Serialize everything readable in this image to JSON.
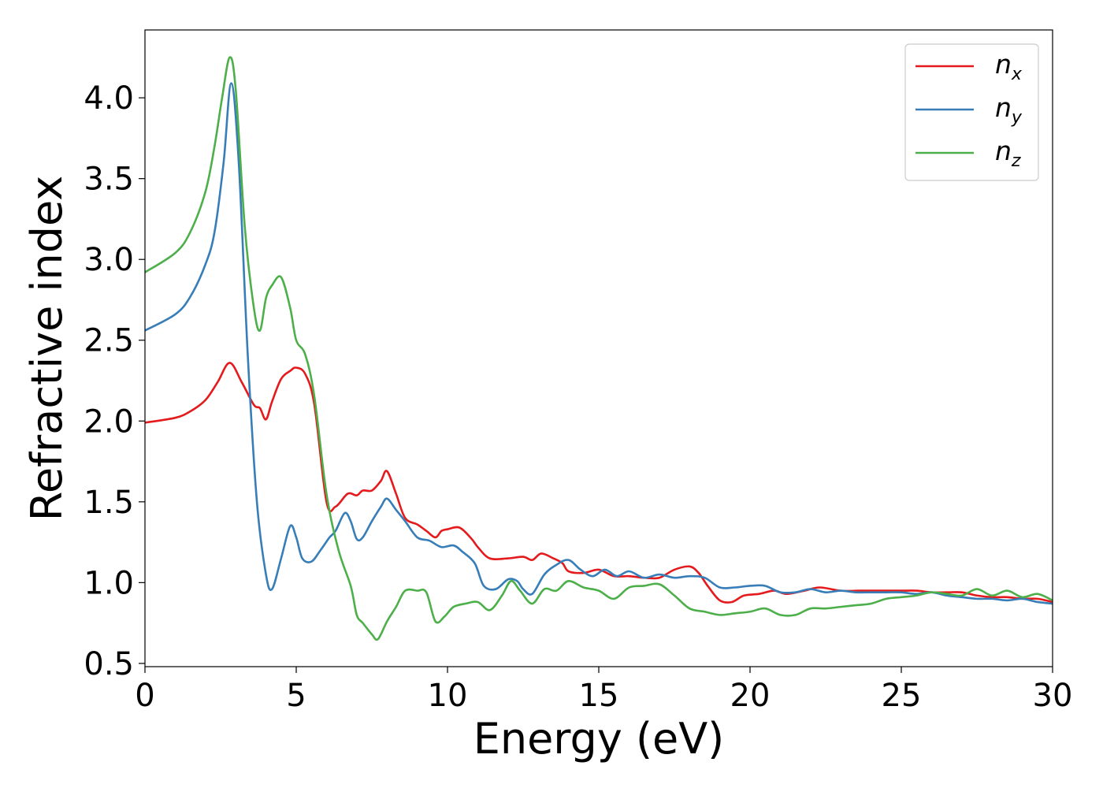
{
  "chart_data": {
    "type": "line",
    "title": "",
    "xlabel": "Energy (eV)",
    "ylabel": "Refractive index",
    "xlim": [
      0,
      30
    ],
    "ylim": [
      0.48,
      4.42
    ],
    "xticks": [
      0,
      5,
      10,
      15,
      20,
      25,
      30
    ],
    "xtick_labels": [
      "0",
      "5",
      "10",
      "15",
      "20",
      "25",
      "30"
    ],
    "yticks": [
      0.5,
      1.0,
      1.5,
      2.0,
      2.5,
      3.0,
      3.5,
      4.0
    ],
    "ytick_labels": [
      "0.5",
      "1.0",
      "1.5",
      "2.0",
      "2.5",
      "3.0",
      "3.5",
      "4.0"
    ],
    "grid": false,
    "legend_position": "top-right",
    "series": [
      {
        "name": "n_x",
        "label_base": "n",
        "label_sub": "x",
        "color": "#e41a1c",
        "x": [
          0,
          1,
          1.5,
          2,
          2.4,
          2.8,
          3.2,
          3.6,
          3.8,
          4.0,
          4.2,
          4.5,
          4.8,
          5.0,
          5.3,
          5.6,
          6.0,
          6.3,
          6.7,
          7.0,
          7.2,
          7.5,
          7.8,
          8.0,
          8.3,
          8.6,
          9.0,
          9.3,
          9.6,
          9.8,
          10.0,
          10.4,
          10.8,
          11.0,
          11.4,
          12.0,
          12.5,
          12.8,
          13.1,
          13.5,
          13.8,
          14.0,
          14.5,
          15.0,
          15.5,
          16.0,
          16.5,
          17.0,
          17.5,
          18.0,
          18.3,
          18.6,
          19.0,
          19.4,
          19.8,
          20.3,
          20.8,
          21.2,
          21.8,
          22.3,
          23.0,
          23.6,
          24.0,
          24.5,
          25.0,
          25.5,
          26.0,
          26.5,
          27.0,
          27.5,
          28.0,
          28.5,
          29.0,
          29.5,
          30.0
        ],
        "y": [
          1.99,
          2.02,
          2.06,
          2.13,
          2.24,
          2.36,
          2.24,
          2.1,
          2.08,
          2.01,
          2.12,
          2.26,
          2.31,
          2.33,
          2.29,
          2.1,
          1.5,
          1.47,
          1.55,
          1.54,
          1.57,
          1.57,
          1.63,
          1.69,
          1.55,
          1.4,
          1.36,
          1.32,
          1.28,
          1.32,
          1.33,
          1.34,
          1.27,
          1.22,
          1.15,
          1.15,
          1.16,
          1.14,
          1.18,
          1.15,
          1.12,
          1.07,
          1.06,
          1.08,
          1.04,
          1.04,
          1.03,
          1.03,
          1.08,
          1.1,
          1.06,
          0.98,
          0.89,
          0.88,
          0.92,
          0.93,
          0.95,
          0.93,
          0.95,
          0.97,
          0.95,
          0.95,
          0.95,
          0.95,
          0.95,
          0.95,
          0.94,
          0.94,
          0.94,
          0.92,
          0.91,
          0.91,
          0.9,
          0.9,
          0.88
        ]
      },
      {
        "name": "n_y",
        "label_base": "n",
        "label_sub": "y",
        "color": "#377eb8",
        "x": [
          0,
          1,
          1.5,
          2,
          2.3,
          2.6,
          2.85,
          3.1,
          3.4,
          3.7,
          4.0,
          4.2,
          4.5,
          4.8,
          5.0,
          5.2,
          5.5,
          5.8,
          6.1,
          6.3,
          6.6,
          6.8,
          7.0,
          7.2,
          7.5,
          7.8,
          8.0,
          8.3,
          8.6,
          9.0,
          9.4,
          9.8,
          10.2,
          10.5,
          10.9,
          11.2,
          11.6,
          12.0,
          12.3,
          12.5,
          12.8,
          13.2,
          13.6,
          14.0,
          14.4,
          14.8,
          15.2,
          15.6,
          16.0,
          16.5,
          17.0,
          17.5,
          18.0,
          18.5,
          19.0,
          19.5,
          20.0,
          20.5,
          21.0,
          21.5,
          22.0,
          22.5,
          23.0,
          23.5,
          24.0,
          24.5,
          25.0,
          25.5,
          26.0,
          26.5,
          27.0,
          27.5,
          28.0,
          28.5,
          29.0,
          29.5,
          30.0
        ],
        "y": [
          2.56,
          2.66,
          2.77,
          2.97,
          3.17,
          3.6,
          4.09,
          3.6,
          2.4,
          1.5,
          1.05,
          0.96,
          1.15,
          1.35,
          1.28,
          1.15,
          1.13,
          1.2,
          1.28,
          1.32,
          1.43,
          1.38,
          1.27,
          1.28,
          1.38,
          1.47,
          1.52,
          1.45,
          1.38,
          1.28,
          1.26,
          1.22,
          1.23,
          1.19,
          1.12,
          0.98,
          0.96,
          1.02,
          1.01,
          0.96,
          0.93,
          1.05,
          1.11,
          1.14,
          1.08,
          1.04,
          1.08,
          1.04,
          1.07,
          1.03,
          1.05,
          1.03,
          1.04,
          1.03,
          0.97,
          0.97,
          0.98,
          0.98,
          0.94,
          0.94,
          0.96,
          0.94,
          0.95,
          0.94,
          0.94,
          0.94,
          0.94,
          0.93,
          0.94,
          0.92,
          0.91,
          0.9,
          0.9,
          0.89,
          0.9,
          0.88,
          0.87
        ]
      },
      {
        "name": "n_z",
        "label_base": "n",
        "label_sub": "z",
        "color": "#4daf4a",
        "x": [
          0,
          1,
          1.5,
          2,
          2.3,
          2.55,
          2.8,
          3.0,
          3.3,
          3.6,
          3.8,
          4.0,
          4.2,
          4.5,
          4.8,
          5.0,
          5.3,
          5.6,
          6.0,
          6.4,
          6.8,
          7.0,
          7.2,
          7.5,
          7.7,
          8.0,
          8.3,
          8.6,
          9.0,
          9.3,
          9.6,
          9.9,
          10.2,
          10.6,
          11.0,
          11.4,
          11.8,
          12.1,
          12.4,
          12.8,
          13.2,
          13.6,
          14.0,
          14.5,
          15.0,
          15.5,
          16.0,
          16.5,
          17.0,
          17.5,
          18.0,
          18.5,
          19.0,
          19.5,
          20.0,
          20.5,
          21.0,
          21.5,
          22.0,
          22.5,
          23.0,
          23.5,
          24.0,
          24.5,
          25.0,
          25.5,
          26.0,
          26.5,
          27.0,
          27.5,
          28.0,
          28.5,
          29.0,
          29.5,
          30.0
        ],
        "y": [
          2.92,
          3.04,
          3.17,
          3.42,
          3.7,
          4.0,
          4.25,
          4.05,
          3.2,
          2.7,
          2.56,
          2.76,
          2.84,
          2.89,
          2.7,
          2.5,
          2.41,
          2.15,
          1.55,
          1.2,
          0.98,
          0.8,
          0.75,
          0.68,
          0.65,
          0.76,
          0.85,
          0.95,
          0.95,
          0.94,
          0.76,
          0.79,
          0.85,
          0.87,
          0.88,
          0.83,
          0.92,
          1.01,
          0.95,
          0.87,
          0.96,
          0.95,
          1.01,
          0.97,
          0.95,
          0.9,
          0.97,
          0.98,
          0.99,
          0.92,
          0.84,
          0.82,
          0.8,
          0.81,
          0.82,
          0.84,
          0.8,
          0.8,
          0.84,
          0.84,
          0.85,
          0.86,
          0.87,
          0.9,
          0.91,
          0.92,
          0.94,
          0.93,
          0.92,
          0.96,
          0.92,
          0.95,
          0.91,
          0.93,
          0.89
        ]
      }
    ]
  }
}
